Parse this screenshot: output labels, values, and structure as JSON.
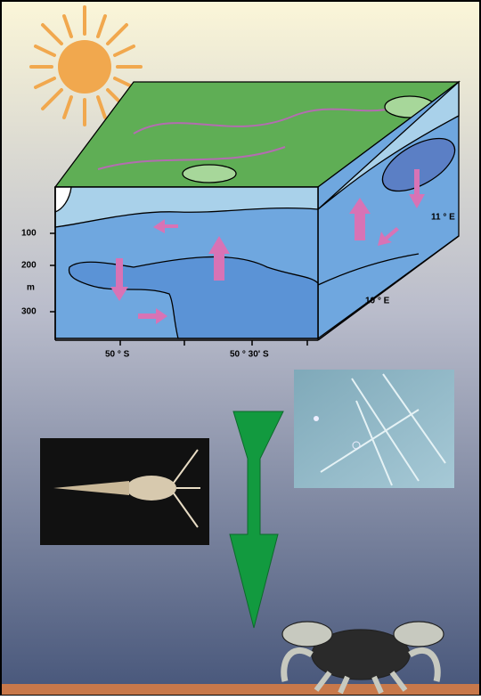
{
  "axis_labels": {
    "depth": [
      "100",
      "200",
      "300"
    ],
    "depth_unit": "m",
    "latitude": [
      "50 ° S",
      "50 ° 30' S"
    ],
    "longitude": [
      "11 ° E",
      "10 ° E"
    ]
  }
}
